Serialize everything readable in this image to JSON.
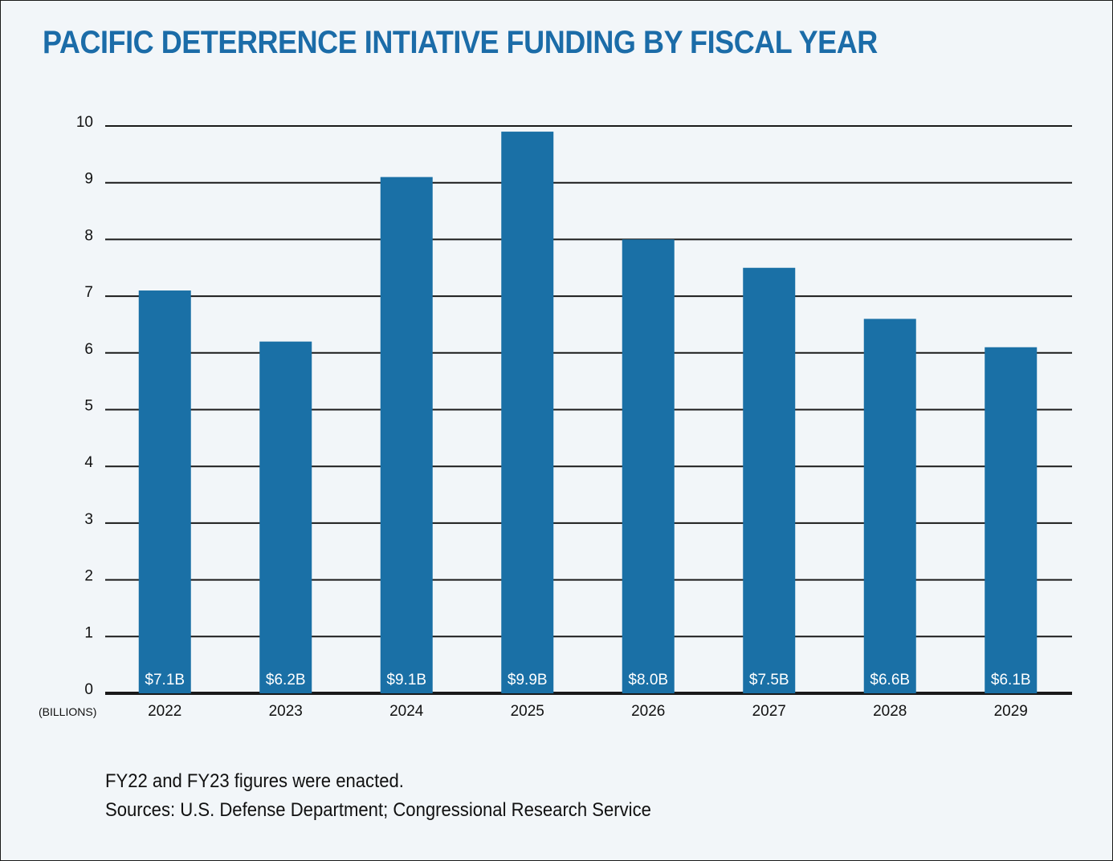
{
  "title": "PACIFIC DETERRENCE INTIATIVE FUNDING BY FISCAL YEAR",
  "footer": {
    "note": "FY22 and FY23 figures were enacted.",
    "sources": "Sources: U.S. Defense Department; Congressional Research Service"
  },
  "colors": {
    "bar": "#1a70a6",
    "title": "#1b6ca8",
    "background": "#f2f6f9",
    "grid": "#1a1a1a",
    "bar_label": "#ffffff"
  },
  "chart_data": {
    "type": "bar",
    "title": "PACIFIC DETERRENCE INTIATIVE FUNDING BY FISCAL YEAR",
    "xlabel": "",
    "ylabel": "(BILLIONS)",
    "categories": [
      "2022",
      "2023",
      "2024",
      "2025",
      "2026",
      "2027",
      "2028",
      "2029"
    ],
    "values": [
      7.1,
      6.2,
      9.1,
      9.9,
      8.0,
      7.5,
      6.6,
      6.1
    ],
    "data_labels": [
      "$7.1B",
      "$6.2B",
      "$9.1B",
      "$9.9B",
      "$8.0B",
      "$7.5B",
      "$6.6B",
      "$6.1B"
    ],
    "yticks": [
      "0",
      "1",
      "2",
      "3",
      "4",
      "5",
      "6",
      "7",
      "8",
      "9",
      "10"
    ],
    "ylim": [
      0,
      10
    ],
    "grid": true,
    "legend": "none"
  }
}
